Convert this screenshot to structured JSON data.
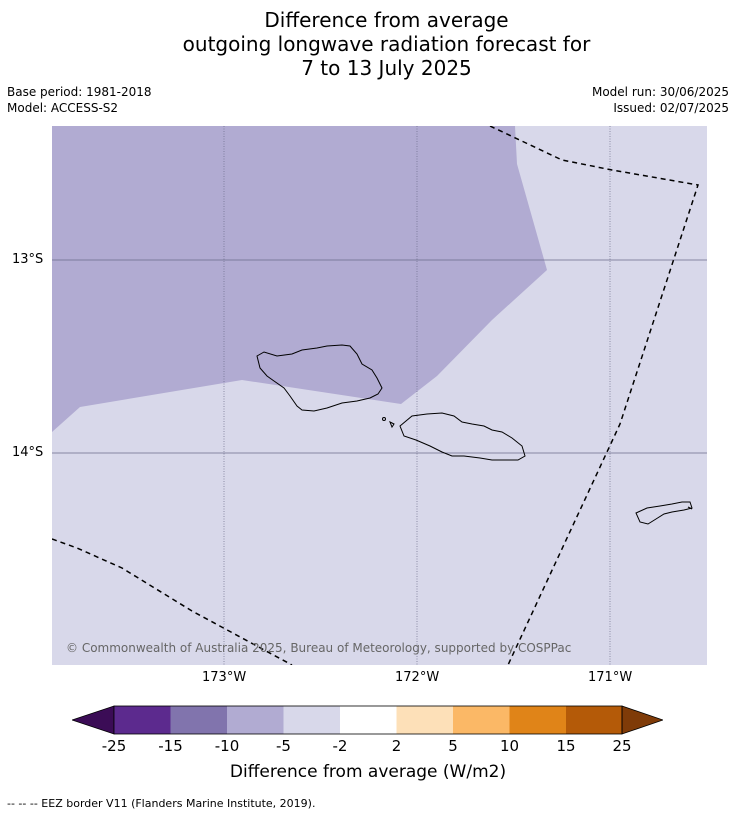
{
  "title": {
    "line1": "Difference from average",
    "line2": "outgoing longwave radiation forecast for",
    "line3": "7 to 13 July 2025"
  },
  "meta": {
    "base_period": "Base period: 1981-2018",
    "model": "Model: ACCESS-S2",
    "model_run": "Model run: 30/06/2025",
    "issued": "Issued: 02/07/2025"
  },
  "map": {
    "copyright": "© Commonwealth of Australia 2025, Bureau of Meteorology, supported by COSPPac",
    "lat_labels": [
      "13°S",
      "14°S"
    ],
    "lon_labels": [
      "173°W",
      "172°W",
      "171°W"
    ],
    "colors": {
      "bin_neg10_neg5": "#b1abd2",
      "bin_neg5_neg2": "#d8d8ea"
    }
  },
  "colorbar": {
    "ticks": [
      "-25",
      "-15",
      "-10",
      "-5",
      "-2",
      "2",
      "5",
      "10",
      "15",
      "25"
    ],
    "colors": [
      "#3b0c56",
      "#5c2a8e",
      "#8174ad",
      "#b1abd2",
      "#d8d8ea",
      "#ffffff",
      "#fde0b8",
      "#fbb866",
      "#e08418",
      "#b45a08",
      "#7f3b08"
    ],
    "title": "Difference from average (W/m2)"
  },
  "footnote": "--  --  -- EEZ border V11 (Flanders Marine Institute, 2019)."
}
